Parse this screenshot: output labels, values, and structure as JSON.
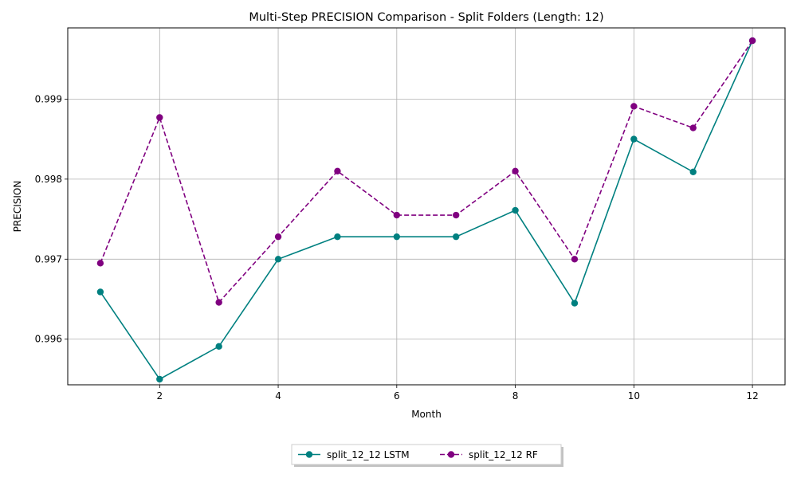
{
  "chart_data": {
    "type": "line",
    "title": "Multi-Step PRECISION Comparison - Split Folders (Length: 12)",
    "xlabel": "Month",
    "ylabel": "PRECISION",
    "x": [
      1,
      2,
      3,
      4,
      5,
      6,
      7,
      8,
      9,
      10,
      11,
      12
    ],
    "xlim": [
      0.45,
      12.55
    ],
    "ylim": [
      0.99543,
      0.99989
    ],
    "xticks": [
      2,
      4,
      6,
      8,
      10,
      12
    ],
    "yticks": [
      0.996,
      0.997,
      0.998,
      0.999
    ],
    "ytick_labels": [
      "0.996",
      "0.997",
      "0.998",
      "0.999"
    ],
    "grid": true,
    "legend_position": "bottom-center, below the axes",
    "series": [
      {
        "name": "split_12_12 LSTM",
        "color": "#008080",
        "line_style": "solid",
        "marker": "circle",
        "values": [
          0.99659,
          0.9955,
          0.99591,
          0.997,
          0.99728,
          0.99728,
          0.99728,
          0.99761,
          0.99645,
          0.9985,
          0.99809,
          0.99973
        ]
      },
      {
        "name": "split_12_12 RF",
        "color": "#800080",
        "line_style": "dashed",
        "marker": "circle",
        "values": [
          0.99695,
          0.99877,
          0.99646,
          0.99728,
          0.9981,
          0.99755,
          0.99755,
          0.9981,
          0.997,
          0.99891,
          0.99864,
          0.99973
        ]
      }
    ]
  }
}
